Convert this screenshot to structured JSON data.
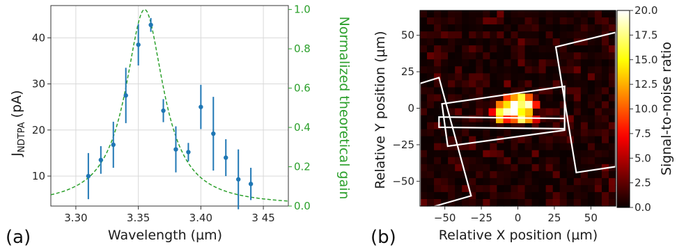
{
  "chart_data": [
    {
      "type": "scatter",
      "panel_label": "(a)",
      "xlabel": "Wavelength (µm)",
      "ylabel_main": "J",
      "ylabel_sub": "NDTPA",
      "ylabel_unit": " (pA)",
      "ylabel_right": "Normalized theoretical gain",
      "xlim": [
        3.28,
        3.47
      ],
      "ylim": [
        3.5,
        47
      ],
      "ylim_right": [
        0,
        1.02
      ],
      "x_ticks": [
        3.3,
        3.35,
        3.4,
        3.45
      ],
      "x_tick_labels": [
        "3.30",
        "3.35",
        "3.40",
        "3 45"
      ],
      "y_ticks": [
        10,
        20,
        30,
        40
      ],
      "y_tick_labels": [
        "10",
        "20",
        "30",
        "40"
      ],
      "y_right_ticks": [
        0.0,
        0.2,
        0.4,
        0.6,
        0.8,
        1.0
      ],
      "y_right_tick_labels": [
        "0.0",
        "0.2",
        "0.4",
        "0.6",
        "0.8",
        "1.0"
      ],
      "grid": true,
      "series": [
        {
          "type": "scatter_errorbar",
          "color": "#1f77b4",
          "points": [
            {
              "x": 3.31,
              "y": 10.0,
              "err": 5.0
            },
            {
              "x": 3.32,
              "y": 13.5,
              "err": 3.0
            },
            {
              "x": 3.33,
              "y": 16.8,
              "err": 5.0
            },
            {
              "x": 3.34,
              "y": 27.5,
              "err": 6.0
            },
            {
              "x": 3.35,
              "y": 38.5,
              "err": 4.5
            },
            {
              "x": 3.36,
              "y": 42.8,
              "err": 1.5
            },
            {
              "x": 3.37,
              "y": 24.2,
              "err": 2.5
            },
            {
              "x": 3.38,
              "y": 15.8,
              "err": 5.0
            },
            {
              "x": 3.39,
              "y": 15.2,
              "err": 2.0
            },
            {
              "x": 3.4,
              "y": 25.0,
              "err": 4.8
            },
            {
              "x": 3.41,
              "y": 19.2,
              "err": 8.0
            },
            {
              "x": 3.42,
              "y": 14.0,
              "err": 4.0
            },
            {
              "x": 3.43,
              "y": 9.3,
              "err": 6.5
            },
            {
              "x": 3.44,
              "y": 8.3,
              "err": 3.5
            }
          ]
        },
        {
          "type": "line",
          "style": "dashed",
          "color": "#2ca02c",
          "axis": "right",
          "model": "lorentzian",
          "center": 3.355,
          "half_width": 0.0185
        }
      ]
    },
    {
      "type": "heatmap",
      "panel_label": "(b)",
      "xlabel": "Relative X position (µm)",
      "ylabel": "Relative Y position (µm)",
      "colorbar_label": "Signal-to-noise ratio",
      "colormap": "hot",
      "xlim": [
        -67,
        67
      ],
      "ylim": [
        -67,
        67
      ],
      "x_ticks": [
        -50,
        -25,
        0,
        25,
        50
      ],
      "x_tick_labels": [
        "−50",
        "−25",
        "0",
        "25",
        "50"
      ],
      "y_ticks": [
        50,
        25,
        0,
        -25,
        -50
      ],
      "y_tick_labels": [
        "50",
        "25",
        "0",
        "−25",
        "−50"
      ],
      "colorbar_range": [
        0,
        20
      ],
      "colorbar_ticks": [
        0,
        2.5,
        5,
        7.5,
        10,
        12.5,
        15,
        17.5,
        20
      ],
      "colorbar_tick_labels": [
        "0.0",
        "2.5",
        "5.0",
        "7.5",
        "10.0",
        "12.5",
        "15.0",
        "17.5",
        "20.0"
      ],
      "grid_size": [
        28,
        28
      ],
      "hot_cells": [
        {
          "x": -7.5,
          "y": 7.5,
          "v": 9
        },
        {
          "x": -2.5,
          "y": 7.5,
          "v": 12
        },
        {
          "x": 2.5,
          "y": 7.5,
          "v": 16
        },
        {
          "x": 7.5,
          "y": 7.5,
          "v": 10
        },
        {
          "x": -12.5,
          "y": 2.5,
          "v": 11
        },
        {
          "x": -7.5,
          "y": 2.5,
          "v": 14
        },
        {
          "x": -2.5,
          "y": 2.5,
          "v": 20
        },
        {
          "x": 2.5,
          "y": 2.5,
          "v": 17
        },
        {
          "x": 7.5,
          "y": 2.5,
          "v": 19
        },
        {
          "x": 12.5,
          "y": 2.5,
          "v": 8
        },
        {
          "x": -17.5,
          "y": -2.5,
          "v": 7
        },
        {
          "x": -12.5,
          "y": -2.5,
          "v": 16
        },
        {
          "x": -7.5,
          "y": -2.5,
          "v": 19
        },
        {
          "x": -2.5,
          "y": -2.5,
          "v": 20
        },
        {
          "x": 2.5,
          "y": -2.5,
          "v": 15
        },
        {
          "x": 7.5,
          "y": -2.5,
          "v": 13
        },
        {
          "x": -12.5,
          "y": -7.5,
          "v": 13
        },
        {
          "x": -7.5,
          "y": -7.5,
          "v": 8
        },
        {
          "x": -2.5,
          "y": -7.5,
          "v": 10
        },
        {
          "x": 2.5,
          "y": -7.5,
          "v": 17
        },
        {
          "x": 7.5,
          "y": -7.5,
          "v": 12
        },
        {
          "x": 12.5,
          "y": -7.5,
          "v": 6
        }
      ],
      "outline_color": "#ffffff",
      "outlines": [
        [
          [
            -67,
            17
          ],
          [
            -54,
            21
          ],
          [
            -32,
            -60
          ],
          [
            -67,
            -70
          ]
        ],
        [
          [
            -54,
            -6
          ],
          [
            -54,
            -13
          ],
          [
            32,
            -14
          ],
          [
            32,
            -7
          ]
        ],
        [
          [
            -52,
            3
          ],
          [
            32,
            15
          ],
          [
            32,
            -15
          ],
          [
            -48,
            -26
          ]
        ],
        [
          [
            26,
            42
          ],
          [
            67,
            52
          ],
          [
            67,
            -40
          ],
          [
            40,
            -44
          ]
        ]
      ]
    }
  ]
}
